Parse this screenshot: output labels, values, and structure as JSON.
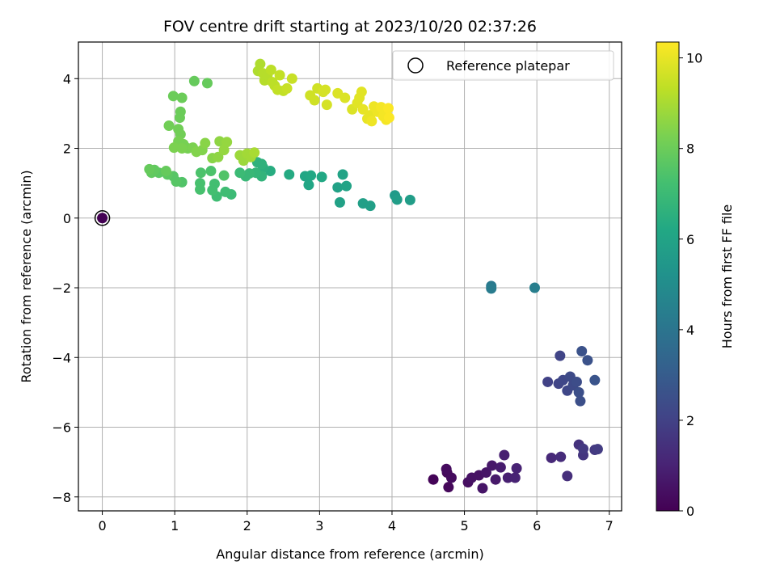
{
  "chart_data": {
    "type": "scatter",
    "title": "FOV centre drift starting at 2023/10/20 02:37:26",
    "xlabel": "Angular distance from reference (arcmin)",
    "ylabel": "Rotation from reference (arcmin)",
    "xlim": [
      -0.33,
      7.17
    ],
    "ylim": [
      -8.4,
      5.05
    ],
    "xticks": [
      0,
      1,
      2,
      3,
      4,
      5,
      6,
      7
    ],
    "yticks": [
      -8,
      -6,
      -4,
      -2,
      0,
      2,
      4
    ],
    "grid": true,
    "legend": {
      "placement": "top-right",
      "entries": [
        "Reference platepar"
      ]
    },
    "reference_point": {
      "x": 0,
      "y": 0
    },
    "colorbar": {
      "label": "Hours from first FF file",
      "range": [
        0,
        10.35
      ],
      "ticks": [
        0,
        2,
        4,
        6,
        8,
        10
      ],
      "colormap": "viridis"
    },
    "points": [
      {
        "x": 0.0,
        "y": 0.0,
        "c": 0.0
      },
      {
        "x": 4.57,
        "y": -7.5,
        "c": 0.1
      },
      {
        "x": 4.76,
        "y": -7.3,
        "c": 0.2
      },
      {
        "x": 4.78,
        "y": -7.72,
        "c": 0.2
      },
      {
        "x": 4.82,
        "y": -7.45,
        "c": 0.3
      },
      {
        "x": 4.75,
        "y": -7.2,
        "c": 0.3
      },
      {
        "x": 5.05,
        "y": -7.58,
        "c": 0.4
      },
      {
        "x": 5.1,
        "y": -7.45,
        "c": 0.5
      },
      {
        "x": 5.2,
        "y": -7.38,
        "c": 0.5
      },
      {
        "x": 5.25,
        "y": -7.75,
        "c": 0.6
      },
      {
        "x": 5.3,
        "y": -7.3,
        "c": 0.6
      },
      {
        "x": 5.38,
        "y": -7.1,
        "c": 0.7
      },
      {
        "x": 5.43,
        "y": -7.5,
        "c": 0.7
      },
      {
        "x": 5.5,
        "y": -7.15,
        "c": 0.8
      },
      {
        "x": 5.55,
        "y": -6.8,
        "c": 0.9
      },
      {
        "x": 5.6,
        "y": -7.45,
        "c": 0.9
      },
      {
        "x": 5.7,
        "y": -7.45,
        "c": 1.0
      },
      {
        "x": 5.72,
        "y": -7.18,
        "c": 1.0
      },
      {
        "x": 6.2,
        "y": -6.88,
        "c": 1.2
      },
      {
        "x": 6.33,
        "y": -6.85,
        "c": 1.3
      },
      {
        "x": 6.42,
        "y": -7.4,
        "c": 1.4
      },
      {
        "x": 6.58,
        "y": -6.5,
        "c": 1.5
      },
      {
        "x": 6.64,
        "y": -6.8,
        "c": 1.6
      },
      {
        "x": 6.64,
        "y": -6.62,
        "c": 1.7
      },
      {
        "x": 6.8,
        "y": -6.65,
        "c": 1.7
      },
      {
        "x": 6.84,
        "y": -6.63,
        "c": 1.8
      },
      {
        "x": 6.15,
        "y": -4.7,
        "c": 2.0
      },
      {
        "x": 6.3,
        "y": -4.75,
        "c": 2.1
      },
      {
        "x": 6.32,
        "y": -3.95,
        "c": 2.1
      },
      {
        "x": 6.36,
        "y": -4.65,
        "c": 2.2
      },
      {
        "x": 6.42,
        "y": -4.95,
        "c": 2.2
      },
      {
        "x": 6.46,
        "y": -4.55,
        "c": 2.3
      },
      {
        "x": 6.5,
        "y": -4.8,
        "c": 2.3
      },
      {
        "x": 6.55,
        "y": -4.7,
        "c": 2.4
      },
      {
        "x": 6.58,
        "y": -5.0,
        "c": 2.5
      },
      {
        "x": 6.6,
        "y": -5.25,
        "c": 2.5
      },
      {
        "x": 6.62,
        "y": -3.82,
        "c": 2.6
      },
      {
        "x": 6.7,
        "y": -4.08,
        "c": 2.6
      },
      {
        "x": 6.8,
        "y": -4.65,
        "c": 2.7
      },
      {
        "x": 5.37,
        "y": -1.95,
        "c": 4.2
      },
      {
        "x": 5.37,
        "y": -2.02,
        "c": 4.3
      },
      {
        "x": 5.97,
        "y": -2.0,
        "c": 4.4
      },
      {
        "x": 4.04,
        "y": 0.65,
        "c": 5.6
      },
      {
        "x": 4.07,
        "y": 0.53,
        "c": 5.7
      },
      {
        "x": 4.25,
        "y": 0.52,
        "c": 5.7
      },
      {
        "x": 3.6,
        "y": 0.42,
        "c": 5.8
      },
      {
        "x": 3.7,
        "y": 0.35,
        "c": 5.8
      },
      {
        "x": 3.25,
        "y": 0.88,
        "c": 5.9
      },
      {
        "x": 3.28,
        "y": 0.45,
        "c": 5.9
      },
      {
        "x": 3.32,
        "y": 1.25,
        "c": 6.0
      },
      {
        "x": 3.37,
        "y": 0.92,
        "c": 6.0
      },
      {
        "x": 2.8,
        "y": 1.2,
        "c": 6.1
      },
      {
        "x": 2.85,
        "y": 0.95,
        "c": 6.1
      },
      {
        "x": 2.88,
        "y": 1.22,
        "c": 6.2
      },
      {
        "x": 3.03,
        "y": 1.18,
        "c": 6.2
      },
      {
        "x": 2.58,
        "y": 1.25,
        "c": 6.3
      },
      {
        "x": 2.32,
        "y": 1.35,
        "c": 6.4
      },
      {
        "x": 2.22,
        "y": 1.45,
        "c": 6.5
      },
      {
        "x": 2.2,
        "y": 1.55,
        "c": 6.6
      },
      {
        "x": 2.14,
        "y": 1.6,
        "c": 6.6
      },
      {
        "x": 2.2,
        "y": 1.2,
        "c": 6.7
      },
      {
        "x": 2.12,
        "y": 1.3,
        "c": 6.8
      },
      {
        "x": 2.03,
        "y": 1.28,
        "c": 6.9
      },
      {
        "x": 1.98,
        "y": 1.2,
        "c": 6.9
      },
      {
        "x": 1.9,
        "y": 1.3,
        "c": 7.0
      },
      {
        "x": 1.78,
        "y": 0.68,
        "c": 7.0
      },
      {
        "x": 1.7,
        "y": 0.75,
        "c": 7.1
      },
      {
        "x": 1.58,
        "y": 0.62,
        "c": 7.1
      },
      {
        "x": 1.55,
        "y": 0.98,
        "c": 7.2
      },
      {
        "x": 1.52,
        "y": 0.8,
        "c": 7.2
      },
      {
        "x": 1.35,
        "y": 1.0,
        "c": 7.3
      },
      {
        "x": 1.35,
        "y": 0.82,
        "c": 7.3
      },
      {
        "x": 1.36,
        "y": 1.3,
        "c": 7.4
      },
      {
        "x": 1.5,
        "y": 1.35,
        "c": 7.4
      },
      {
        "x": 1.68,
        "y": 1.22,
        "c": 7.5
      },
      {
        "x": 1.1,
        "y": 1.03,
        "c": 7.5
      },
      {
        "x": 1.02,
        "y": 1.05,
        "c": 7.6
      },
      {
        "x": 0.98,
        "y": 1.2,
        "c": 7.6
      },
      {
        "x": 0.9,
        "y": 1.25,
        "c": 7.7
      },
      {
        "x": 0.78,
        "y": 1.3,
        "c": 7.7
      },
      {
        "x": 0.72,
        "y": 1.38,
        "c": 7.8
      },
      {
        "x": 0.68,
        "y": 1.3,
        "c": 7.8
      },
      {
        "x": 0.65,
        "y": 1.4,
        "c": 7.9
      },
      {
        "x": 0.88,
        "y": 1.35,
        "c": 7.9
      },
      {
        "x": 1.27,
        "y": 3.93,
        "c": 7.9
      },
      {
        "x": 1.45,
        "y": 3.87,
        "c": 7.9
      },
      {
        "x": 0.98,
        "y": 3.5,
        "c": 8.0
      },
      {
        "x": 1.1,
        "y": 3.45,
        "c": 8.0
      },
      {
        "x": 1.08,
        "y": 3.05,
        "c": 8.0
      },
      {
        "x": 1.07,
        "y": 2.88,
        "c": 8.0
      },
      {
        "x": 0.92,
        "y": 2.65,
        "c": 8.1
      },
      {
        "x": 1.05,
        "y": 2.55,
        "c": 8.1
      },
      {
        "x": 1.08,
        "y": 2.4,
        "c": 8.1
      },
      {
        "x": 1.05,
        "y": 2.2,
        "c": 8.2
      },
      {
        "x": 1.12,
        "y": 2.12,
        "c": 8.2
      },
      {
        "x": 1.18,
        "y": 2.0,
        "c": 8.2
      },
      {
        "x": 0.99,
        "y": 2.02,
        "c": 8.3
      },
      {
        "x": 1.1,
        "y": 2.0,
        "c": 8.3
      },
      {
        "x": 1.25,
        "y": 2.02,
        "c": 8.3
      },
      {
        "x": 1.3,
        "y": 1.9,
        "c": 8.4
      },
      {
        "x": 1.38,
        "y": 1.95,
        "c": 8.4
      },
      {
        "x": 1.42,
        "y": 2.15,
        "c": 8.5
      },
      {
        "x": 1.52,
        "y": 1.72,
        "c": 8.5
      },
      {
        "x": 1.6,
        "y": 1.75,
        "c": 8.6
      },
      {
        "x": 1.62,
        "y": 2.2,
        "c": 8.6
      },
      {
        "x": 1.68,
        "y": 1.95,
        "c": 8.7
      },
      {
        "x": 1.72,
        "y": 2.18,
        "c": 8.7
      },
      {
        "x": 1.9,
        "y": 1.8,
        "c": 8.8
      },
      {
        "x": 1.95,
        "y": 1.65,
        "c": 8.8
      },
      {
        "x": 2.0,
        "y": 1.85,
        "c": 8.9
      },
      {
        "x": 2.05,
        "y": 1.75,
        "c": 8.9
      },
      {
        "x": 2.1,
        "y": 1.88,
        "c": 9.0
      },
      {
        "x": 2.15,
        "y": 4.22,
        "c": 9.1
      },
      {
        "x": 2.18,
        "y": 4.42,
        "c": 9.1
      },
      {
        "x": 2.22,
        "y": 4.15,
        "c": 9.2
      },
      {
        "x": 2.24,
        "y": 3.95,
        "c": 9.2
      },
      {
        "x": 2.28,
        "y": 4.1,
        "c": 9.2
      },
      {
        "x": 2.33,
        "y": 4.25,
        "c": 9.3
      },
      {
        "x": 2.35,
        "y": 3.9,
        "c": 9.3
      },
      {
        "x": 2.38,
        "y": 3.8,
        "c": 9.3
      },
      {
        "x": 2.42,
        "y": 3.68,
        "c": 9.4
      },
      {
        "x": 2.45,
        "y": 4.1,
        "c": 9.4
      },
      {
        "x": 2.5,
        "y": 3.65,
        "c": 9.4
      },
      {
        "x": 2.55,
        "y": 3.72,
        "c": 9.5
      },
      {
        "x": 2.62,
        "y": 4.0,
        "c": 9.5
      },
      {
        "x": 2.87,
        "y": 3.52,
        "c": 9.6
      },
      {
        "x": 2.93,
        "y": 3.38,
        "c": 9.6
      },
      {
        "x": 2.97,
        "y": 3.72,
        "c": 9.6
      },
      {
        "x": 3.05,
        "y": 3.62,
        "c": 9.7
      },
      {
        "x": 3.08,
        "y": 3.68,
        "c": 9.7
      },
      {
        "x": 3.1,
        "y": 3.25,
        "c": 9.7
      },
      {
        "x": 3.25,
        "y": 3.58,
        "c": 9.8
      },
      {
        "x": 3.35,
        "y": 3.45,
        "c": 9.8
      },
      {
        "x": 3.45,
        "y": 3.12,
        "c": 9.8
      },
      {
        "x": 3.52,
        "y": 3.3,
        "c": 9.9
      },
      {
        "x": 3.55,
        "y": 3.45,
        "c": 9.9
      },
      {
        "x": 3.58,
        "y": 3.62,
        "c": 9.9
      },
      {
        "x": 3.6,
        "y": 3.12,
        "c": 10.0
      },
      {
        "x": 3.66,
        "y": 2.85,
        "c": 10.0
      },
      {
        "x": 3.7,
        "y": 2.95,
        "c": 10.0
      },
      {
        "x": 3.72,
        "y": 2.78,
        "c": 10.1
      },
      {
        "x": 3.75,
        "y": 3.2,
        "c": 10.1
      },
      {
        "x": 3.8,
        "y": 3.05,
        "c": 10.1
      },
      {
        "x": 3.85,
        "y": 3.18,
        "c": 10.2
      },
      {
        "x": 3.88,
        "y": 2.92,
        "c": 10.2
      },
      {
        "x": 3.92,
        "y": 2.82,
        "c": 10.2
      },
      {
        "x": 3.95,
        "y": 3.15,
        "c": 10.3
      },
      {
        "x": 3.96,
        "y": 2.88,
        "c": 10.3
      }
    ]
  }
}
